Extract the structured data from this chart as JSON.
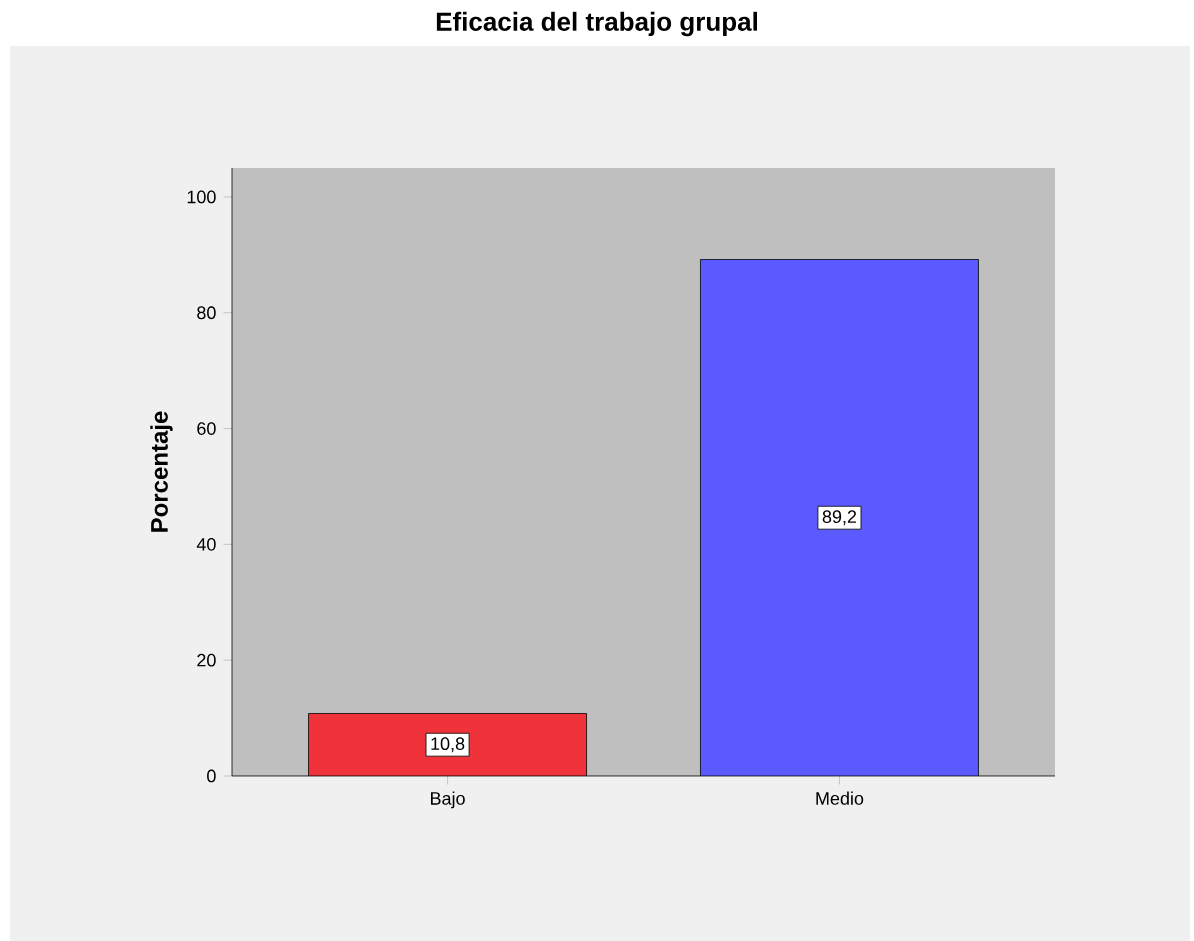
{
  "chart_data": {
    "type": "bar",
    "title": "Eficacia del trabajo grupal",
    "ylabel": "Porcentaje",
    "categories": [
      "Bajo",
      "Medio"
    ],
    "values": [
      10.8,
      89.2
    ],
    "colors": [
      "#f0323a",
      "#5a5aff"
    ],
    "value_labels": [
      "10,8",
      "89,2"
    ],
    "ylim": [
      0,
      105
    ],
    "yticks": [
      0,
      20,
      40,
      60,
      80,
      100
    ],
    "grid": false
  }
}
